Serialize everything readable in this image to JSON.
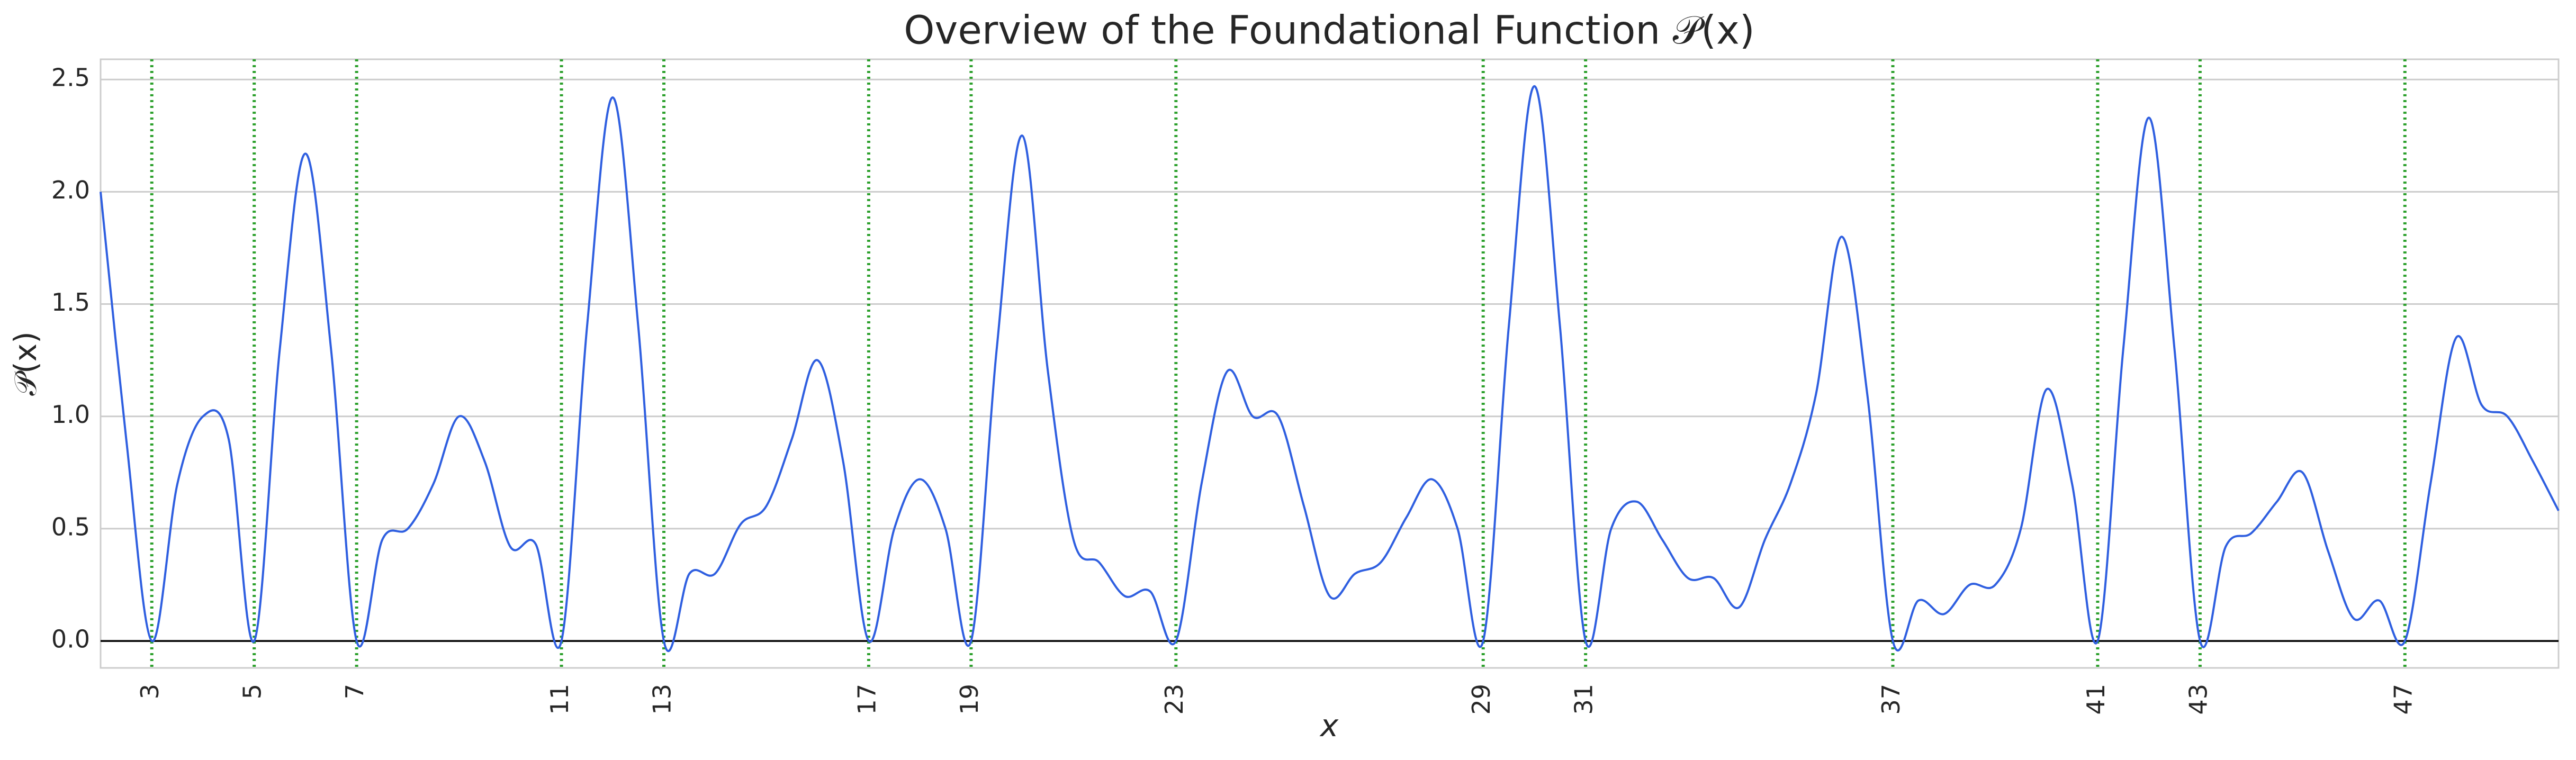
{
  "chart_data": {
    "type": "line",
    "title": "Overview of the Foundational Function 𝒫(x)",
    "x_label": "x",
    "y_label": "𝒫(x)",
    "x": [
      2,
      2.5,
      3,
      3.5,
      4,
      4.5,
      5,
      5.5,
      6,
      6.5,
      7,
      7.5,
      8,
      8.5,
      9,
      9.5,
      10,
      10.5,
      11,
      11.5,
      12,
      12.5,
      13,
      13.5,
      14,
      14.5,
      15,
      15.5,
      16,
      16.5,
      17,
      17.5,
      18,
      18.5,
      19,
      19.5,
      20,
      20.5,
      21,
      21.5,
      22,
      22.5,
      23,
      23.5,
      24,
      24.5,
      25,
      25.5,
      26,
      26.5,
      27,
      27.5,
      28,
      28.5,
      29,
      29.5,
      30,
      30.5,
      31,
      31.5,
      32,
      32.5,
      33,
      33.5,
      34,
      34.5,
      35,
      35.5,
      36,
      36.5,
      37,
      37.5,
      38,
      38.5,
      39,
      39.5,
      40,
      40.5,
      41,
      41.5,
      42,
      42.5,
      43,
      43.5,
      44,
      44.5,
      45,
      45.5,
      46,
      46.5,
      47,
      47.5,
      48,
      48.5,
      49,
      49.5,
      50
    ],
    "series": [
      {
        "color": "#2f5fe0",
        "values": [
          2.0,
          0.9,
          0,
          0.7,
          1.0,
          0.9,
          0,
          1.3,
          2.17,
          1.3,
          0,
          0.45,
          0.5,
          0.7,
          1.0,
          0.8,
          0.42,
          0.43,
          0,
          1.4,
          2.42,
          1.4,
          0,
          0.3,
          0.3,
          0.52,
          0.6,
          0.9,
          1.25,
          0.8,
          0,
          0.5,
          0.72,
          0.5,
          0,
          1.3,
          2.25,
          1.2,
          0.45,
          0.35,
          0.2,
          0.22,
          0,
          0.7,
          1.2,
          1.0,
          1.0,
          0.6,
          0.2,
          0.3,
          0.35,
          0.55,
          0.72,
          0.5,
          0,
          1.4,
          2.47,
          1.4,
          0,
          0.5,
          0.62,
          0.45,
          0.28,
          0.28,
          0.15,
          0.45,
          0.7,
          1.1,
          1.8,
          1.1,
          0,
          0.18,
          0.12,
          0.25,
          0.25,
          0.5,
          1.12,
          0.7,
          0,
          1.3,
          2.33,
          1.3,
          0,
          0.42,
          0.48,
          0.62,
          0.75,
          0.4,
          0.1,
          0.18,
          0,
          0.7,
          1.35,
          1.05,
          1.0,
          0.8,
          0.58
        ]
      }
    ],
    "xlim": [
      2,
      50
    ],
    "ylim": [
      -0.12,
      2.59
    ],
    "xticks": [
      3,
      5,
      7,
      11,
      13,
      17,
      19,
      23,
      29,
      31,
      37,
      41,
      43,
      47
    ],
    "yticks": [
      {
        "value": 0,
        "label": "0.0"
      },
      0.5,
      {
        "value": 1,
        "label": "1.0"
      },
      1.5,
      {
        "value": 2,
        "label": "2.0"
      },
      2.5
    ],
    "vlines_at_xticks": true,
    "vline_color": "#2ca02c",
    "hline": 0,
    "grid": true
  }
}
